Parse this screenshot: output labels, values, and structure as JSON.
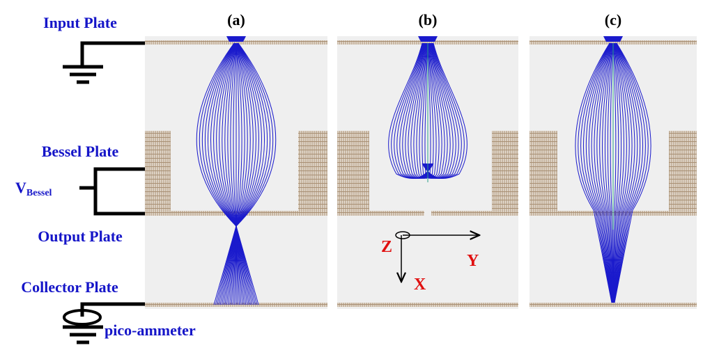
{
  "panel_labels": [
    "(a)",
    "(b)",
    "(c)"
  ],
  "plate_labels": {
    "input": "Input Plate",
    "bessel": "Bessel Plate",
    "output": "Output Plate",
    "collector": "Collector Plate"
  },
  "voltage": {
    "symbol": "V",
    "subscript": "Bessel"
  },
  "meter": "pico-ammeter",
  "axes": {
    "z": "Z",
    "y": "Y",
    "x": "X"
  }
}
